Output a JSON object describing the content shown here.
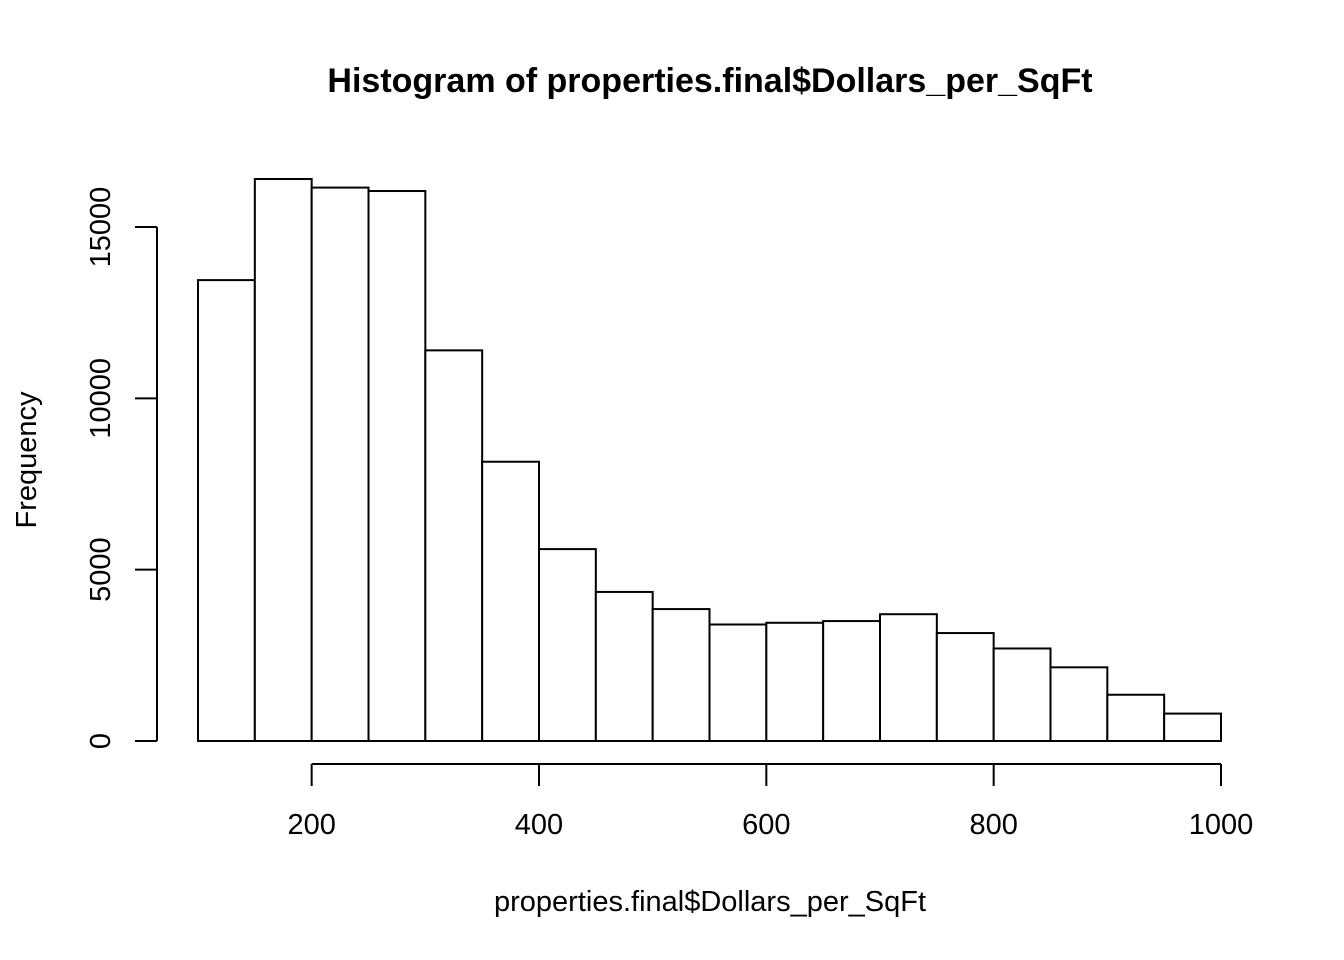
{
  "chart_data": {
    "type": "bar",
    "title": "Histogram of properties.final$Dollars_per_SqFt",
    "xlabel": "properties.final$Dollars_per_SqFt",
    "ylabel": "Frequency",
    "bin_width": 50,
    "bins": [
      {
        "start": 100,
        "end": 150,
        "count": 13450
      },
      {
        "start": 150,
        "end": 200,
        "count": 16400
      },
      {
        "start": 200,
        "end": 250,
        "count": 16150
      },
      {
        "start": 250,
        "end": 300,
        "count": 16050
      },
      {
        "start": 300,
        "end": 350,
        "count": 11400
      },
      {
        "start": 350,
        "end": 400,
        "count": 8150
      },
      {
        "start": 400,
        "end": 450,
        "count": 5600
      },
      {
        "start": 450,
        "end": 500,
        "count": 4350
      },
      {
        "start": 500,
        "end": 550,
        "count": 3850
      },
      {
        "start": 550,
        "end": 600,
        "count": 3400
      },
      {
        "start": 600,
        "end": 650,
        "count": 3450
      },
      {
        "start": 650,
        "end": 700,
        "count": 3500
      },
      {
        "start": 700,
        "end": 750,
        "count": 3700
      },
      {
        "start": 750,
        "end": 800,
        "count": 3150
      },
      {
        "start": 800,
        "end": 850,
        "count": 2700
      },
      {
        "start": 850,
        "end": 900,
        "count": 2150
      },
      {
        "start": 900,
        "end": 950,
        "count": 1350
      },
      {
        "start": 950,
        "end": 1000,
        "count": 800
      }
    ],
    "xlim": [
      100,
      1000
    ],
    "ylim": [
      0,
      16400
    ],
    "x_ticks": [
      200,
      400,
      600,
      800,
      1000
    ],
    "x_tick_labels": [
      "200",
      "400",
      "600",
      "800",
      "1000"
    ],
    "y_ticks": [
      0,
      5000,
      10000,
      15000
    ],
    "y_tick_labels": [
      "0",
      "5000",
      "10000",
      "15000"
    ],
    "grid": false,
    "legend": "none"
  }
}
